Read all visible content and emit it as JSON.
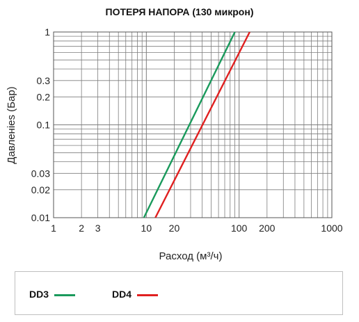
{
  "chart_data": {
    "type": "line",
    "title": "ПОТЕРЯ НАПОРА (130 микрон)",
    "xlabel": "Расход (м³/ч)",
    "ylabel": "Давленіеs (Бар)",
    "xscale": "log",
    "yscale": "log",
    "xlim": [
      1,
      1000
    ],
    "ylim": [
      0.01,
      1
    ],
    "xticks": [
      "1",
      "2",
      "3",
      "10",
      "20",
      "100",
      "200",
      "1000"
    ],
    "xtick_values": [
      1,
      2,
      3,
      10,
      20,
      100,
      200,
      1000
    ],
    "yticks": [
      "1",
      "0.3",
      "0.2",
      "0.1",
      "0.03",
      "0.02",
      "0.01"
    ],
    "ytick_values": [
      1,
      0.3,
      0.2,
      0.1,
      0.03,
      0.02,
      0.01
    ],
    "grid": true,
    "series": [
      {
        "name": "DD3",
        "color": "#1a9a5c",
        "x": [
          9.4,
          90
        ],
        "y": [
          0.01,
          1
        ]
      },
      {
        "name": "DD4",
        "color": "#e02020",
        "x": [
          12.5,
          130
        ],
        "y": [
          0.01,
          1
        ]
      }
    ],
    "legend_position": "bottom"
  }
}
